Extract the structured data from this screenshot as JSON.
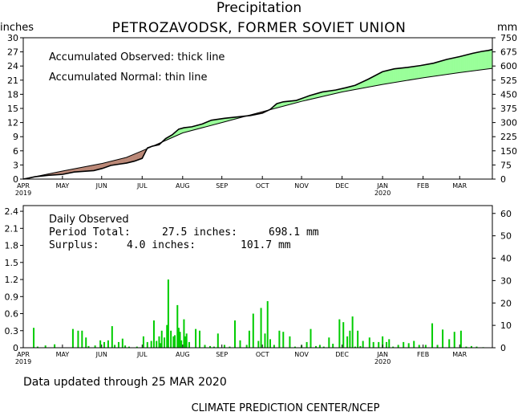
{
  "header": {
    "title": "Precipitation",
    "subtitle": "PETROZAVODSK, FORMER SOVIET UNION",
    "left_unit": "inches",
    "right_unit": "mm"
  },
  "footer": {
    "updated": "Data updated through 25 MAR 2020",
    "credit": "CLIMATE PREDICTION CENTER/NCEP"
  },
  "colors": {
    "surplus_fill": "#99ff99",
    "deficit_fill": "#bb8877",
    "daily_bar": "#00cc00",
    "line": "#000000"
  },
  "chart_data": [
    {
      "type": "area",
      "title": "Accumulated",
      "legend": [
        "Accumulated Observed: thick line",
        "Accumulated Normal: thin line"
      ],
      "x_ticks": [
        "APR",
        "MAY",
        "JUN",
        "JUL",
        "AUG",
        "SEP",
        "OCT",
        "NOV",
        "DEC",
        "JAN",
        "FEB",
        "MAR"
      ],
      "x_tick_days": [
        1,
        31,
        61,
        92,
        123,
        153,
        184,
        214,
        245,
        276,
        307,
        335
      ],
      "x_year_labels": [
        {
          "label": "2019",
          "day": 1
        },
        {
          "label": "2020",
          "day": 276
        }
      ],
      "x_range": [
        1,
        360
      ],
      "ylim_inches": [
        0,
        30
      ],
      "y_ticks_inches": [
        0,
        3,
        6,
        9,
        12,
        15,
        18,
        21,
        24,
        27,
        30
      ],
      "ylim_mm": [
        0,
        750
      ],
      "y_ticks_mm": [
        0,
        75,
        150,
        225,
        300,
        375,
        450,
        525,
        600,
        675,
        750
      ],
      "series": [
        {
          "name": "Accumulated Normal",
          "x": [
            1,
            31,
            61,
            80,
            92,
            110,
            123,
            153,
            184,
            214,
            245,
            276,
            307,
            335,
            360
          ],
          "y": [
            0.0,
            1.7,
            3.3,
            4.6,
            6.0,
            8.2,
            9.8,
            12.0,
            14.3,
            16.5,
            18.5,
            20.1,
            21.5,
            22.6,
            23.5
          ]
        },
        {
          "name": "Accumulated Observed",
          "x": [
            1,
            5,
            10,
            20,
            31,
            40,
            55,
            62,
            68,
            75,
            80,
            86,
            92,
            96,
            100,
            105,
            110,
            115,
            120,
            124,
            130,
            138,
            145,
            155,
            165,
            175,
            184,
            190,
            195,
            200,
            210,
            220,
            230,
            240,
            248,
            255,
            265,
            276,
            285,
            295,
            305,
            315,
            325,
            335,
            345,
            352,
            357,
            360
          ],
          "y": [
            0.0,
            0.2,
            0.5,
            0.8,
            1.0,
            1.5,
            1.8,
            2.3,
            2.9,
            3.2,
            3.4,
            3.8,
            4.4,
            6.6,
            7.0,
            7.3,
            8.6,
            9.4,
            10.6,
            10.9,
            11.1,
            11.7,
            12.5,
            12.9,
            13.2,
            13.5,
            14.0,
            14.8,
            16.0,
            16.4,
            16.7,
            17.7,
            18.5,
            18.9,
            19.4,
            19.9,
            21.2,
            22.8,
            23.4,
            23.7,
            24.1,
            24.6,
            25.4,
            26.0,
            26.7,
            27.1,
            27.3,
            27.5
          ]
        }
      ]
    },
    {
      "type": "bar",
      "title": "Daily Observed",
      "stats": [
        {
          "label": "Period Total:",
          "inches": "27.5 inches:",
          "mm": "698.1 mm"
        },
        {
          "label": "Surplus:",
          "inches": "4.0 inches:",
          "mm": "101.7 mm"
        }
      ],
      "x_range": [
        1,
        360
      ],
      "ylim_inches": [
        0,
        2.5
      ],
      "y_ticks_inches": [
        "0",
        "0.3",
        "0.6",
        "0.9",
        "1.2",
        "1.5",
        "1.8",
        "2.1",
        "2.4"
      ],
      "y_ticks_inches_values": [
        0,
        0.3,
        0.6,
        0.9,
        1.2,
        1.5,
        1.8,
        2.1,
        2.4
      ],
      "ylim_mm": [
        0,
        63.5
      ],
      "y_ticks_mm": [
        0,
        10,
        20,
        30,
        40,
        50,
        60
      ],
      "series": [
        {
          "name": "Daily Observed",
          "x": [
            9,
            12,
            18,
            25,
            39,
            43,
            46,
            49,
            51,
            56,
            60,
            63,
            66,
            69,
            71,
            74,
            77,
            79,
            82,
            88,
            93,
            96,
            99,
            101,
            103,
            105,
            106,
            107,
            109,
            111,
            112,
            114,
            116,
            117,
            119,
            120,
            121,
            122,
            124,
            125,
            126,
            128,
            133,
            136,
            140,
            144,
            147,
            150,
            155,
            159,
            163,
            167,
            172,
            174,
            177,
            181,
            183,
            186,
            188,
            190,
            193,
            197,
            200,
            205,
            209,
            214,
            218,
            221,
            225,
            228,
            231,
            235,
            238,
            243,
            246,
            249,
            251,
            253,
            255,
            257,
            259,
            261,
            266,
            269,
            273,
            276,
            279,
            281,
            284,
            288,
            292,
            296,
            300,
            304,
            309,
            314,
            318,
            322,
            327,
            331,
            336,
            340,
            344,
            348,
            353
          ],
          "y": [
            0.35,
            0.02,
            0.04,
            0.06,
            0.33,
            0.3,
            0.3,
            0.18,
            0.03,
            0.04,
            0.13,
            0.1,
            0.13,
            0.38,
            0.05,
            0.1,
            0.16,
            0.04,
            0.02,
            0.02,
            0.2,
            0.1,
            0.12,
            0.48,
            0.12,
            0.2,
            0.08,
            0.3,
            0.18,
            0.4,
            1.2,
            0.3,
            0.2,
            0.22,
            0.75,
            0.35,
            0.28,
            0.13,
            0.5,
            0.2,
            0.25,
            0.1,
            0.33,
            0.3,
            0.05,
            0.03,
            0.02,
            0.25,
            0.05,
            0.02,
            0.48,
            0.13,
            0.05,
            0.3,
            0.6,
            0.12,
            0.7,
            0.25,
            0.82,
            0.15,
            0.05,
            0.3,
            0.28,
            0.2,
            0.02,
            0.04,
            0.1,
            0.33,
            0.03,
            0.05,
            0.02,
            0.18,
            0.07,
            0.5,
            0.45,
            0.2,
            0.3,
            0.55,
            0.02,
            0.3,
            0.03,
            0.12,
            0.18,
            0.1,
            0.1,
            0.2,
            0.1,
            0.15,
            0.02,
            0.05,
            0.1,
            0.08,
            0.12,
            0.05,
            0.05,
            0.43,
            0.05,
            0.32,
            0.15,
            0.28,
            0.3,
            0.02,
            0.03,
            0.02,
            0.01
          ]
        }
      ]
    }
  ]
}
